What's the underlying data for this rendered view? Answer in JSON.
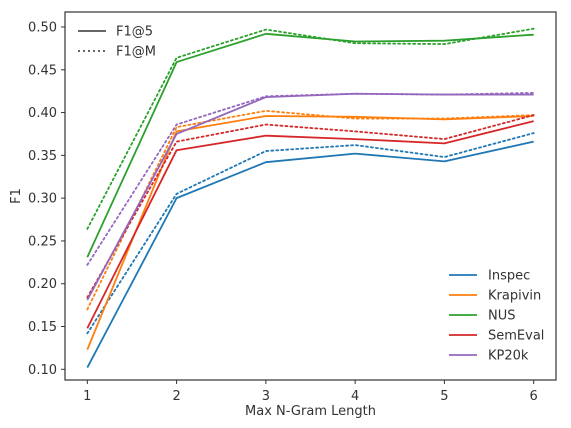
{
  "chart_data": {
    "type": "line",
    "title": "",
    "xlabel": "Max N-Gram Length",
    "ylabel": "F1",
    "x": [
      1,
      2,
      3,
      4,
      5,
      6
    ],
    "xlim": [
      0.75,
      6.25
    ],
    "ylim": [
      0.0875,
      0.5175
    ],
    "yticks": [
      0.1,
      0.15,
      0.2,
      0.25,
      0.3,
      0.35,
      0.4,
      0.45,
      0.5
    ],
    "ytick_labels": [
      "0.10",
      "0.15",
      "0.20",
      "0.25",
      "0.30",
      "0.35",
      "0.40",
      "0.45",
      "0.50"
    ],
    "xtick_labels": [
      "1",
      "2",
      "3",
      "4",
      "5",
      "6"
    ],
    "grid": false,
    "style_legend": {
      "placement": "upper-left",
      "entries": [
        {
          "label": "F1@5",
          "dash": "solid"
        },
        {
          "label": "F1@M",
          "dash": "dotted"
        }
      ]
    },
    "dataset_legend": {
      "placement": "lower-right",
      "entries": [
        "Inspec",
        "Krapivin",
        "NUS",
        "SemEval",
        "KP20k"
      ]
    },
    "series": [
      {
        "name": "Inspec",
        "color": "#1f77b4",
        "f1_at_5": [
          0.102,
          0.3,
          0.342,
          0.352,
          0.343,
          0.366
        ],
        "f1_at_m": [
          0.142,
          0.305,
          0.355,
          0.362,
          0.348,
          0.376
        ]
      },
      {
        "name": "Krapivin",
        "color": "#ff7f0e",
        "f1_at_5": [
          0.123,
          0.378,
          0.396,
          0.395,
          0.392,
          0.396
        ],
        "f1_at_m": [
          0.17,
          0.383,
          0.402,
          0.393,
          0.393,
          0.397
        ]
      },
      {
        "name": "NUS",
        "color": "#2ca02c",
        "f1_at_5": [
          0.231,
          0.459,
          0.492,
          0.483,
          0.484,
          0.491
        ],
        "f1_at_m": [
          0.264,
          0.464,
          0.497,
          0.481,
          0.48,
          0.498
        ]
      },
      {
        "name": "SemEval",
        "color": "#d62728",
        "f1_at_5": [
          0.148,
          0.356,
          0.373,
          0.369,
          0.364,
          0.39
        ],
        "f1_at_m": [
          0.184,
          0.366,
          0.386,
          0.378,
          0.369,
          0.397
        ]
      },
      {
        "name": "KP20k",
        "color": "#9467bd",
        "f1_at_5": [
          0.181,
          0.375,
          0.418,
          0.422,
          0.421,
          0.421
        ],
        "f1_at_m": [
          0.222,
          0.386,
          0.419,
          0.422,
          0.421,
          0.423
        ]
      }
    ]
  }
}
